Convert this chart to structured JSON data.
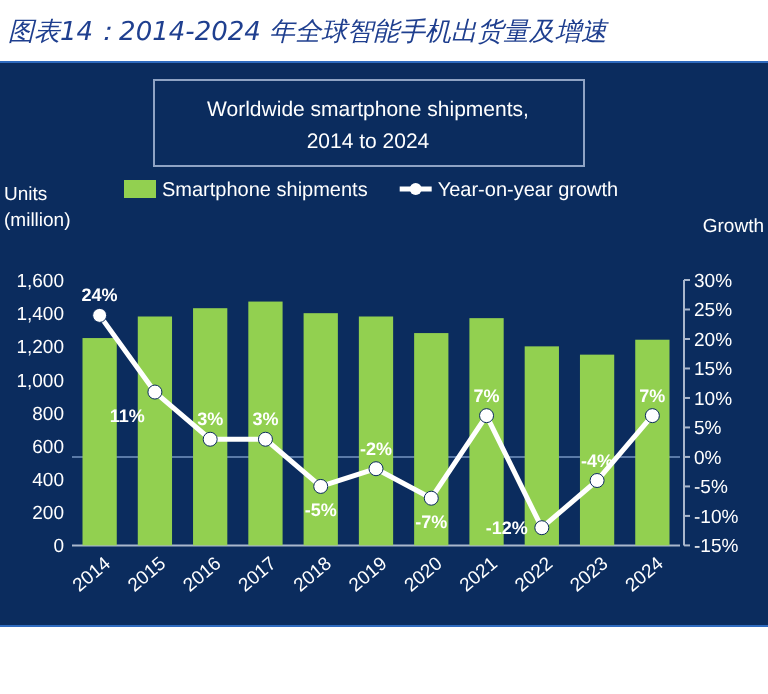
{
  "chart_data": {
    "type": "bar",
    "title": "图表14：2014-2024 年全球智能手机出货量及增速",
    "subtitle": "Worldwide smartphone shipments, 2014 to 2024",
    "ylabel": "Units (million)",
    "y2label": "Growth",
    "categories": [
      "2014",
      "2015",
      "2016",
      "2017",
      "2018",
      "2019",
      "2020",
      "2021",
      "2022",
      "2023",
      "2024"
    ],
    "series": [
      {
        "name": "Smartphone shipments",
        "color": "#92d050",
        "values": [
          1250,
          1380,
          1430,
          1470,
          1400,
          1380,
          1280,
          1370,
          1200,
          1150,
          1240
        ]
      },
      {
        "name": "Year-on-year growth",
        "type": "line",
        "axis": "y2",
        "color": "#ffffff",
        "marker": "circle",
        "values": [
          24,
          11,
          3,
          3,
          -5,
          -2,
          -7,
          7,
          -12,
          -4,
          7
        ],
        "value_labels": [
          "24%",
          "11%",
          "3%",
          "3%",
          "-5%",
          "-2%",
          "-7%",
          "7%",
          "-12%",
          "-4%",
          "7%"
        ]
      }
    ],
    "ylim": [
      0,
      1600
    ],
    "yticks": [
      0,
      200,
      400,
      600,
      800,
      {
        "value": 1000,
        "label": "1,000"
      },
      {
        "value": 1200,
        "label": "1,200"
      },
      {
        "value": 1400,
        "label": "1,400"
      },
      {
        "value": 1600,
        "label": "1,600"
      }
    ],
    "y2lim": [
      -15,
      30
    ],
    "y2ticks": [
      {
        "value": -15,
        "label": "-15%"
      },
      {
        "value": -10,
        "label": "-10%"
      },
      {
        "value": -5,
        "label": "-5%"
      },
      {
        "value": 0,
        "label": "0%"
      },
      {
        "value": 5,
        "label": "5%"
      },
      {
        "value": 10,
        "label": "10%"
      },
      {
        "value": 15,
        "label": "15%"
      },
      {
        "value": 20,
        "label": "20%"
      },
      {
        "value": 25,
        "label": "25%"
      },
      {
        "value": 30,
        "label": "30%"
      }
    ],
    "ref_lines": [
      {
        "axis": "y2",
        "value": 0,
        "color": "#5a7aa8"
      }
    ],
    "legend": "top",
    "grid": false
  }
}
